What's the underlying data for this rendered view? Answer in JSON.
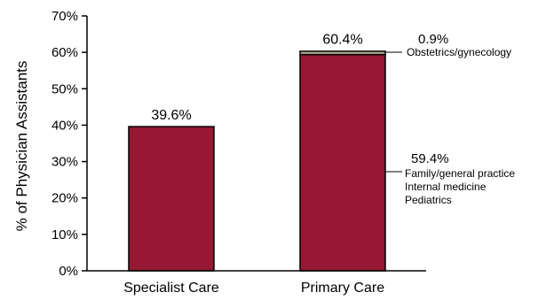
{
  "colors": {
    "bar": "#961832",
    "segment_top": "#b5a99a",
    "axis": "#000000"
  },
  "chart_data": {
    "type": "bar",
    "stacked": true,
    "ylabel": "% of Physician Assistants",
    "xlabel": "",
    "ylim": [
      0,
      70
    ],
    "grid": false,
    "categories": [
      "Specialist Care",
      "Primary Care"
    ],
    "y_ticks": [
      "0%",
      "10%",
      "20%",
      "30%",
      "40%",
      "50%",
      "60%",
      "70%"
    ],
    "series": [
      {
        "values": [
          39.6,
          59.4
        ]
      },
      {
        "values": [
          0,
          0.9
        ]
      }
    ],
    "totals": [
      39.6,
      60.4
    ],
    "total_labels": [
      "39.6%",
      "60.4%"
    ],
    "annotations": [
      {
        "value": "0.9%",
        "lines": [
          "Obstetrics/gynecology"
        ]
      },
      {
        "value": "59.4%",
        "lines": [
          "Family/general practice",
          "Internal medicine",
          "Pediatrics"
        ]
      }
    ]
  }
}
